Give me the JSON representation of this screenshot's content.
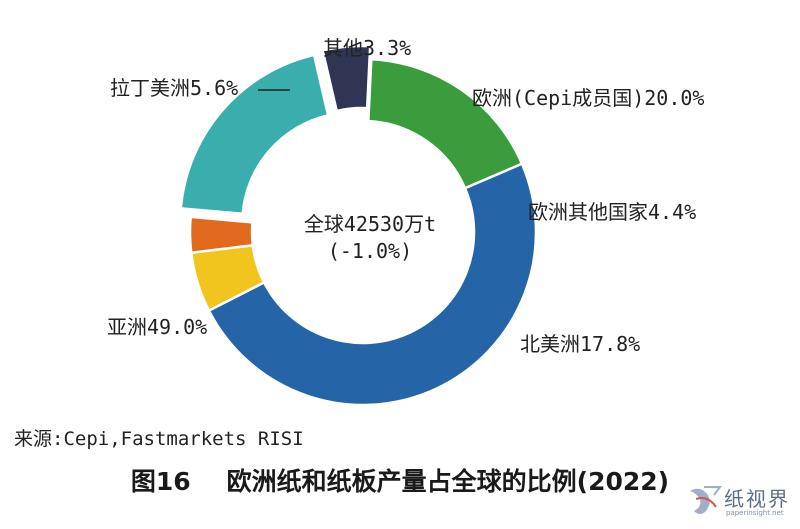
{
  "chart_data": {
    "type": "pie",
    "categories": [
      "欧洲(Cepi成员国)",
      "欧洲其他国家",
      "北美洲",
      "亚洲",
      "拉丁美洲",
      "其他"
    ],
    "values": [
      20.0,
      4.4,
      17.8,
      49.0,
      5.6,
      3.3
    ],
    "labels": [
      "欧洲(Cepi成员国)20.0%",
      "欧洲其他国家4.4%",
      "北美洲17.8%",
      "亚洲49.0%",
      "拉丁美洲5.6%",
      "其他3.3%"
    ],
    "colors": [
      "#3aadad",
      "#2f3552",
      "#3a9c3c",
      "#2664a8",
      "#f2c41e",
      "#e0691b"
    ],
    "exploded": [
      "欧洲(Cepi成员国)",
      "欧洲其他国家"
    ],
    "center_line1": "全球42530万t",
    "center_line2": "(-1.0%)"
  },
  "source": "来源:Cepi,Fastmarkets RISI",
  "caption_number": "图16",
  "caption_title": "欧洲纸和纸板产量占全球的比例(2022)",
  "watermark": {
    "name": "纸视界",
    "sub": "paperinsight.net",
    "color": "#5b6e86"
  }
}
